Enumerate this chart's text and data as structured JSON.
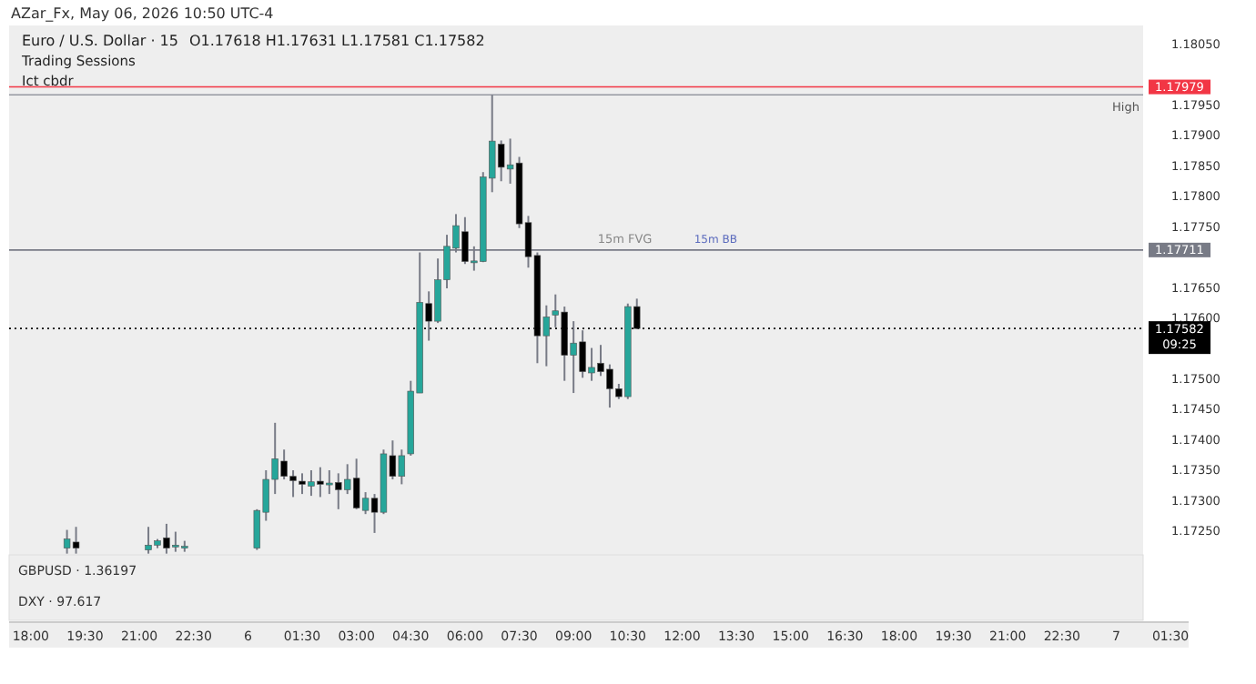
{
  "chart_data": {
    "type": "candlestick",
    "title": "Euro / U.S. Dollar · 15",
    "annotations": [
      "AZar_Fx, May 06, 2026 10:50 UTC-4",
      "O1.17618 H1.17631 L1.17581 C1.17582",
      "Trading Sessions",
      "Ict cbdr",
      "15m FVG",
      "15m BB",
      "GBPUSD · 1.36197",
      "DXY · 97.617",
      "09:25"
    ],
    "x": [
      "2026-05-05T19:00",
      "2026-05-05T19:15",
      "2026-05-05T21:15",
      "2026-05-05T21:30",
      "2026-05-05T21:45",
      "2026-05-05T22:00",
      "2026-05-05T22:15",
      "2026-05-06T00:15",
      "2026-05-06T00:30",
      "2026-05-06T00:45",
      "2026-05-06T01:00",
      "2026-05-06T01:15",
      "2026-05-06T01:30",
      "2026-05-06T01:45",
      "2026-05-06T02:00",
      "2026-05-06T02:15",
      "2026-05-06T02:30",
      "2026-05-06T02:45",
      "2026-05-06T03:00",
      "2026-05-06T03:15",
      "2026-05-06T03:30",
      "2026-05-06T03:45",
      "2026-05-06T04:00",
      "2026-05-06T04:15",
      "2026-05-06T04:30",
      "2026-05-06T04:45",
      "2026-05-06T05:00",
      "2026-05-06T05:15",
      "2026-05-06T05:30",
      "2026-05-06T05:45",
      "2026-05-06T06:00",
      "2026-05-06T06:15",
      "2026-05-06T06:30",
      "2026-05-06T06:45",
      "2026-05-06T07:00",
      "2026-05-06T07:15",
      "2026-05-06T07:30",
      "2026-05-06T07:45",
      "2026-05-06T08:00",
      "2026-05-06T08:15",
      "2026-05-06T08:30",
      "2026-05-06T08:45",
      "2026-05-06T09:00",
      "2026-05-06T09:15",
      "2026-05-06T09:30",
      "2026-05-06T09:45",
      "2026-05-06T10:00",
      "2026-05-06T10:15",
      "2026-05-06T10:30",
      "2026-05-06T10:45"
    ],
    "ohlc": [
      [
        1.17221,
        1.17251,
        1.17212,
        1.17236
      ],
      [
        1.17231,
        1.17256,
        1.17212,
        1.17221
      ],
      [
        1.17218,
        1.17256,
        1.17212,
        1.17226
      ],
      [
        1.17226,
        1.17236,
        1.17221,
        1.17233
      ],
      [
        1.17238,
        1.17261,
        1.17212,
        1.17221
      ],
      [
        1.17224,
        1.17248,
        1.17215,
        1.17226
      ],
      [
        1.17221,
        1.17233,
        1.17215,
        1.17224
      ],
      [
        1.17221,
        1.17285,
        1.17218,
        1.17283
      ],
      [
        1.1728,
        1.17349,
        1.17266,
        1.17334
      ],
      [
        1.17334,
        1.17427,
        1.1731,
        1.17368
      ],
      [
        1.17364,
        1.17383,
        1.17334,
        1.17339
      ],
      [
        1.17339,
        1.17349,
        1.17305,
        1.17332
      ],
      [
        1.17331,
        1.17344,
        1.1731,
        1.17326
      ],
      [
        1.17323,
        1.17349,
        1.17307,
        1.1733
      ],
      [
        1.17331,
        1.17354,
        1.17305,
        1.17326
      ],
      [
        1.17327,
        1.17349,
        1.1731,
        1.17328
      ],
      [
        1.17329,
        1.17344,
        1.17285,
        1.17317
      ],
      [
        1.17317,
        1.17359,
        1.1731,
        1.17334
      ],
      [
        1.17336,
        1.17368,
        1.17285,
        1.17287
      ],
      [
        1.17283,
        1.17313,
        1.17277,
        1.17303
      ],
      [
        1.17303,
        1.1731,
        1.17246,
        1.1728
      ],
      [
        1.1728,
        1.17383,
        1.17277,
        1.17376
      ],
      [
        1.17373,
        1.17398,
        1.17334,
        1.17339
      ],
      [
        1.17339,
        1.17383,
        1.17326,
        1.17373
      ],
      [
        1.17376,
        1.17496,
        1.17373,
        1.17479
      ],
      [
        1.17476,
        1.17707,
        1.17476,
        1.17625
      ],
      [
        1.17623,
        1.17643,
        1.17562,
        1.17594
      ],
      [
        1.17594,
        1.17697,
        1.17591,
        1.17662
      ],
      [
        1.17662,
        1.17736,
        1.17648,
        1.17717
      ],
      [
        1.17714,
        1.1777,
        1.17707,
        1.17751
      ],
      [
        1.17741,
        1.17765,
        1.17688,
        1.17692
      ],
      [
        1.17692,
        1.17717,
        1.17677,
        1.17693
      ],
      [
        1.17692,
        1.17839,
        1.17691,
        1.17831
      ],
      [
        1.17829,
        1.17966,
        1.17806,
        1.1789
      ],
      [
        1.17885,
        1.17891,
        1.17824,
        1.17847
      ],
      [
        1.17844,
        1.17894,
        1.1782,
        1.17851
      ],
      [
        1.17854,
        1.17864,
        1.17747,
        1.17754
      ],
      [
        1.17756,
        1.17767,
        1.17682,
        1.177
      ],
      [
        1.17702,
        1.17707,
        1.17525,
        1.1757
      ],
      [
        1.1757,
        1.1762,
        1.1752,
        1.17601
      ],
      [
        1.17604,
        1.17638,
        1.17584,
        1.17611
      ],
      [
        1.17609,
        1.17618,
        1.17496,
        1.17538
      ],
      [
        1.17538,
        1.17594,
        1.17476,
        1.17558
      ],
      [
        1.1756,
        1.17579,
        1.17501,
        1.17511
      ],
      [
        1.17509,
        1.1755,
        1.17496,
        1.17518
      ],
      [
        1.17525,
        1.17555,
        1.17504,
        1.17511
      ],
      [
        1.17515,
        1.17523,
        1.17452,
        1.17483
      ],
      [
        1.17483,
        1.17491,
        1.17466,
        1.1747
      ],
      [
        1.1747,
        1.17623,
        1.17466,
        1.17618
      ],
      [
        1.17618,
        1.17631,
        1.17581,
        1.17582
      ]
    ],
    "colors": [
      "#26a69a",
      "#000000",
      "#26a69a",
      "#26a69a",
      "#000000",
      "#26a69a",
      "#26a69a",
      "#26a69a",
      "#26a69a",
      "#26a69a",
      "#000000",
      "#000000",
      "#000000",
      "#26a69a",
      "#000000",
      "#26a69a",
      "#000000",
      "#26a69a",
      "#000000",
      "#26a69a",
      "#000000",
      "#26a69a",
      "#000000",
      "#26a69a",
      "#26a69a",
      "#26a69a",
      "#000000",
      "#26a69a",
      "#26a69a",
      "#26a69a",
      "#000000",
      "#26a69a",
      "#26a69a",
      "#26a69a",
      "#000000",
      "#26a69a",
      "#000000",
      "#000000",
      "#000000",
      "#26a69a",
      "#26a69a",
      "#000000",
      "#26a69a",
      "#000000",
      "#26a69a",
      "#000000",
      "#000000",
      "#000000",
      "#26a69a",
      "#000000"
    ],
    "xlim": [
      "2026-05-05T17:24",
      "2026-05-07T02:00"
    ],
    "xticks": [
      {
        "value": "2026-05-05T18:00",
        "label": "18:00"
      },
      {
        "value": "2026-05-05T19:30",
        "label": "19:30"
      },
      {
        "value": "2026-05-05T21:00",
        "label": "21:00"
      },
      {
        "value": "2026-05-05T22:30",
        "label": "22:30"
      },
      {
        "value": "2026-05-06T00:00",
        "label": "6"
      },
      {
        "value": "2026-05-06T01:30",
        "label": "01:30"
      },
      {
        "value": "2026-05-06T03:00",
        "label": "03:00"
      },
      {
        "value": "2026-05-06T04:30",
        "label": "04:30"
      },
      {
        "value": "2026-05-06T06:00",
        "label": "06:00"
      },
      {
        "value": "2026-05-06T07:30",
        "label": "07:30"
      },
      {
        "value": "2026-05-06T09:00",
        "label": "09:00"
      },
      {
        "value": "2026-05-06T10:30",
        "label": "10:30"
      },
      {
        "value": "2026-05-06T12:00",
        "label": "12:00"
      },
      {
        "value": "2026-05-06T13:30",
        "label": "13:30"
      },
      {
        "value": "2026-05-06T15:00",
        "label": "15:00"
      },
      {
        "value": "2026-05-06T16:30",
        "label": "16:30"
      },
      {
        "value": "2026-05-06T18:00",
        "label": "18:00"
      },
      {
        "value": "2026-05-06T19:30",
        "label": "19:30"
      },
      {
        "value": "2026-05-06T21:00",
        "label": "21:00"
      },
      {
        "value": "2026-05-06T22:30",
        "label": "22:30"
      },
      {
        "value": "2026-05-07T00:00",
        "label": "7"
      },
      {
        "value": "2026-05-07T01:30",
        "label": "01:30"
      }
    ],
    "ylim": [
      1.1721,
      1.1808
    ],
    "yticks": [
      {
        "value": 1.1725,
        "label": "1.17250"
      },
      {
        "value": 1.173,
        "label": "1.17300"
      },
      {
        "value": 1.1735,
        "label": "1.17350"
      },
      {
        "value": 1.174,
        "label": "1.17400"
      },
      {
        "value": 1.1745,
        "label": "1.17450"
      },
      {
        "value": 1.175,
        "label": "1.17500"
      },
      {
        "value": 1.176,
        "label": "1.17600"
      },
      {
        "value": 1.1765,
        "label": "1.17650"
      },
      {
        "value": 1.1775,
        "label": "1.17750"
      },
      {
        "value": 1.178,
        "label": "1.17800"
      },
      {
        "value": 1.1785,
        "label": "1.17850"
      },
      {
        "value": 1.179,
        "label": "1.17900"
      },
      {
        "value": 1.1795,
        "label": "1.17950"
      },
      {
        "value": 1.1805,
        "label": "1.18050"
      }
    ],
    "ref_lines": [
      {
        "axis": "y",
        "value": 1.17979,
        "label": "1.17979",
        "color": "#f23645"
      },
      {
        "axis": "y",
        "value": 1.17966,
        "label": "High",
        "color": "#9598a1"
      },
      {
        "axis": "y",
        "value": 1.17711,
        "label": "1.17711",
        "color": "#787b86"
      },
      {
        "axis": "y",
        "value": 1.17582,
        "label": "1.17582",
        "color": "#000000",
        "line_style": "dotted"
      }
    ]
  }
}
